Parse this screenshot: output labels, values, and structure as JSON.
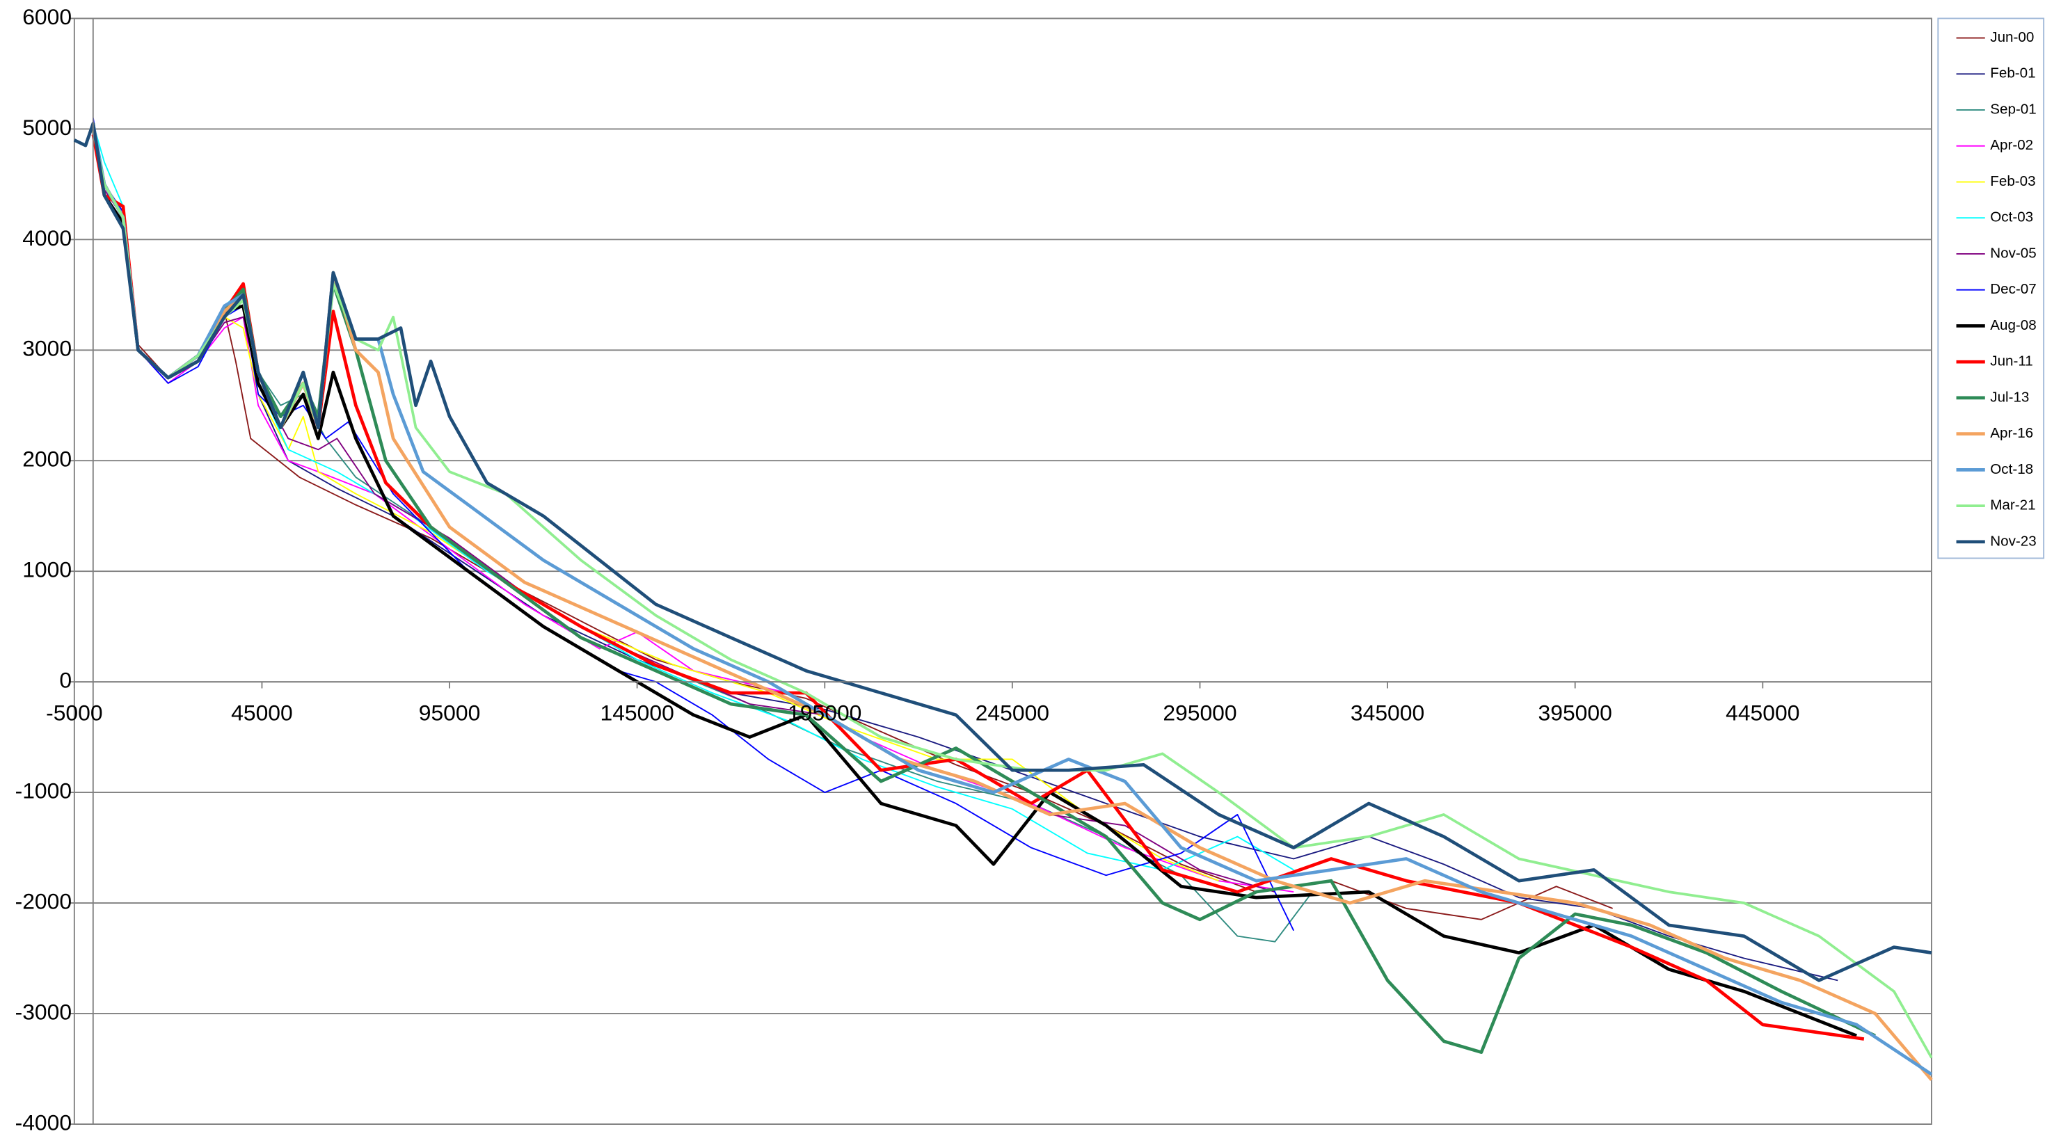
{
  "chart_data": {
    "type": "line",
    "xlim": [
      -5000,
      490000
    ],
    "xticks": [
      -5000,
      45000,
      95000,
      145000,
      195000,
      245000,
      295000,
      345000,
      395000,
      445000
    ],
    "ylim": [
      -4000,
      6000
    ],
    "yticks": [
      -4000,
      -3000,
      -2000,
      -1000,
      0,
      1000,
      2000,
      3000,
      4000,
      5000,
      6000
    ],
    "grid": true,
    "legend": "right",
    "series": [
      {
        "name": "Jun-00",
        "color": "#8b1a1a",
        "width": 1,
        "x": [
          0,
          3000,
          8000,
          12000,
          20000,
          28000,
          35000,
          38000,
          42000,
          55000,
          70000,
          90000,
          110000,
          130000,
          150000,
          170000,
          190000,
          210000,
          230000,
          250000,
          270000,
          290000,
          310000,
          330000,
          350000,
          370000,
          390000,
          405000
        ],
        "values": [
          4900,
          4500,
          4200,
          3050,
          2750,
          2950,
          3350,
          2900,
          2200,
          1850,
          1600,
          1300,
          900,
          550,
          200,
          0,
          -150,
          -450,
          -750,
          -1000,
          -1300,
          -1650,
          -1900,
          -1800,
          -2050,
          -2150,
          -1850,
          -2050
        ]
      },
      {
        "name": "Feb-01",
        "color": "#1a1a80",
        "width": 1,
        "x": [
          0,
          3000,
          8000,
          12000,
          20000,
          28000,
          35000,
          40000,
          44000,
          52000,
          65000,
          80000,
          100000,
          120000,
          145000,
          170000,
          195000,
          220000,
          245000,
          270000,
          295000,
          320000,
          340000,
          360000,
          380000,
          400000,
          420000,
          440000,
          465000
        ],
        "values": [
          5000,
          4400,
          4150,
          3000,
          2750,
          2900,
          3300,
          3450,
          2600,
          2000,
          1750,
          1500,
          1050,
          600,
          200,
          -100,
          -250,
          -500,
          -800,
          -1100,
          -1400,
          -1600,
          -1400,
          -1650,
          -1950,
          -2050,
          -2300,
          -2500,
          -2700
        ]
      },
      {
        "name": "Sep-01",
        "color": "#2e8b80",
        "width": 1,
        "x": [
          0,
          3000,
          8000,
          12000,
          20000,
          28000,
          35000,
          40000,
          44000,
          50000,
          56000,
          62000,
          70000,
          90000,
          110000,
          130000,
          150000,
          175000,
          200000,
          225000,
          250000,
          270000,
          290000,
          305000,
          315000,
          325000
        ],
        "values": [
          4900,
          4500,
          4250,
          3000,
          2750,
          2950,
          3350,
          3500,
          2800,
          2500,
          2600,
          2200,
          1850,
          1400,
          900,
          500,
          150,
          -200,
          -600,
          -900,
          -1100,
          -1400,
          -1750,
          -2300,
          -2350,
          -1900
        ]
      },
      {
        "name": "Apr-02",
        "color": "#ff00ff",
        "width": 1,
        "x": [
          0,
          3000,
          8000,
          12000,
          20000,
          28000,
          35000,
          40000,
          44000,
          52000,
          60000,
          75000,
          95000,
          115000,
          135000,
          145000,
          160000,
          185000,
          205000,
          225000,
          250000,
          275000,
          300000,
          320000
        ],
        "values": [
          4950,
          4450,
          4200,
          3000,
          2700,
          2900,
          3200,
          3300,
          2500,
          2000,
          1900,
          1700,
          1200,
          700,
          300,
          450,
          100,
          -100,
          -500,
          -800,
          -1100,
          -1500,
          -1800,
          -1900
        ]
      },
      {
        "name": "Feb-03",
        "color": "#ffff00",
        "width": 1,
        "x": [
          0,
          3000,
          8000,
          12000,
          20000,
          28000,
          35000,
          40000,
          44000,
          52000,
          56000,
          60000,
          70000,
          90000,
          110000,
          130000,
          155000,
          180000,
          200000,
          225000,
          245000,
          265000,
          285000,
          300000
        ],
        "values": [
          4900,
          4500,
          4200,
          3000,
          2750,
          2950,
          3300,
          3200,
          2600,
          2100,
          2400,
          1900,
          1700,
          1350,
          900,
          500,
          150,
          -100,
          -400,
          -700,
          -700,
          -1200,
          -1600,
          -1800
        ]
      },
      {
        "name": "Oct-03",
        "color": "#00ffff",
        "width": 1,
        "x": [
          0,
          3000,
          8000,
          12000,
          20000,
          28000,
          35000,
          40000,
          44000,
          52000,
          65000,
          85000,
          105000,
          125000,
          145000,
          165000,
          185000,
          205000,
          225000,
          245000,
          265000,
          285000,
          305000,
          320000
        ],
        "values": [
          5050,
          4700,
          4300,
          3000,
          2750,
          2950,
          3400,
          3550,
          2700,
          2100,
          1900,
          1500,
          1000,
          600,
          200,
          -100,
          -350,
          -700,
          -950,
          -1150,
          -1550,
          -1700,
          -1400,
          -1700
        ]
      },
      {
        "name": "Nov-05",
        "color": "#800080",
        "width": 1,
        "x": [
          0,
          3000,
          8000,
          12000,
          20000,
          28000,
          35000,
          40000,
          44000,
          52000,
          60000,
          65000,
          75000,
          95000,
          115000,
          135000,
          155000,
          175000,
          195000,
          215000,
          235000,
          255000,
          275000,
          295000,
          315000
        ],
        "values": [
          4950,
          4450,
          4200,
          3000,
          2750,
          2900,
          3250,
          3300,
          2700,
          2200,
          2100,
          2200,
          1700,
          1300,
          800,
          400,
          100,
          -200,
          -300,
          -700,
          -900,
          -1200,
          -1300,
          -1700,
          -1900
        ]
      },
      {
        "name": "Dec-07",
        "color": "#0000ff",
        "width": 1,
        "x": [
          0,
          3000,
          8000,
          12000,
          20000,
          28000,
          35000,
          40000,
          44000,
          50000,
          56000,
          62000,
          68000,
          80000,
          100000,
          120000,
          140000,
          150000,
          165000,
          180000,
          195000,
          210000,
          230000,
          250000,
          270000,
          290000,
          305000,
          320000
        ],
        "values": [
          5100,
          4500,
          4250,
          3000,
          2700,
          2850,
          3300,
          3400,
          2600,
          2400,
          2500,
          2200,
          2350,
          1700,
          1000,
          500,
          100,
          0,
          -300,
          -700,
          -1000,
          -800,
          -1100,
          -1500,
          -1750,
          -1550,
          -1200,
          -2250
        ]
      },
      {
        "name": "Aug-08",
        "color": "#000000",
        "width": 2.5,
        "x": [
          0,
          3000,
          8000,
          12000,
          20000,
          28000,
          35000,
          40000,
          44000,
          50000,
          56000,
          60000,
          64000,
          70000,
          80000,
          100000,
          120000,
          140000,
          160000,
          175000,
          190000,
          210000,
          230000,
          240000,
          255000,
          270000,
          290000,
          310000,
          340000,
          360000,
          380000,
          400000,
          420000,
          440000,
          470000
        ],
        "values": [
          5000,
          4400,
          4150,
          3000,
          2750,
          2900,
          3350,
          3400,
          2700,
          2300,
          2600,
          2200,
          2800,
          2200,
          1500,
          1000,
          500,
          100,
          -300,
          -500,
          -300,
          -1100,
          -1300,
          -1650,
          -1000,
          -1300,
          -1850,
          -1950,
          -1900,
          -2300,
          -2450,
          -2200,
          -2600,
          -2800,
          -3200
        ]
      },
      {
        "name": "Jun-11",
        "color": "#ff0000",
        "width": 2.5,
        "x": [
          0,
          3000,
          8000,
          12000,
          20000,
          28000,
          35000,
          40000,
          44000,
          50000,
          56000,
          60000,
          64000,
          70000,
          78000,
          90000,
          110000,
          130000,
          150000,
          170000,
          190000,
          210000,
          230000,
          250000,
          265000,
          285000,
          305000,
          330000,
          350000,
          380000,
          410000,
          430000,
          445000,
          472000
        ],
        "values": [
          4950,
          4400,
          4300,
          3000,
          2750,
          2950,
          3350,
          3600,
          2800,
          2300,
          2700,
          2300,
          3350,
          2500,
          1800,
          1400,
          900,
          500,
          150,
          -100,
          -100,
          -800,
          -700,
          -1100,
          -800,
          -1700,
          -1900,
          -1600,
          -1800,
          -2000,
          -2400,
          -2700,
          -3100,
          -3230
        ]
      },
      {
        "name": "Jul-13",
        "color": "#2e8b57",
        "width": 2.5,
        "x": [
          0,
          3000,
          8000,
          12000,
          20000,
          28000,
          35000,
          40000,
          44000,
          50000,
          56000,
          60000,
          64000,
          70000,
          78000,
          90000,
          110000,
          130000,
          150000,
          170000,
          190000,
          210000,
          230000,
          250000,
          270000,
          285000,
          295000,
          310000,
          330000,
          345000,
          360000,
          370000,
          380000,
          395000,
          410000,
          430000,
          450000,
          475000
        ],
        "values": [
          5000,
          4500,
          4200,
          3000,
          2750,
          2950,
          3350,
          3550,
          2800,
          2400,
          2700,
          2400,
          3600,
          3000,
          2000,
          1400,
          900,
          400,
          100,
          -200,
          -300,
          -900,
          -600,
          -1000,
          -1400,
          -2000,
          -2150,
          -1900,
          -1800,
          -2700,
          -3250,
          -3350,
          -2500,
          -2100,
          -2200,
          -2450,
          -2800,
          -3200
        ]
      },
      {
        "name": "Apr-16",
        "color": "#f4a460",
        "width": 2.5,
        "x": [
          0,
          3000,
          8000,
          12000,
          20000,
          28000,
          35000,
          40000,
          44000,
          50000,
          56000,
          60000,
          64000,
          70000,
          76000,
          80000,
          95000,
          115000,
          135000,
          155000,
          175000,
          195000,
          215000,
          235000,
          255000,
          275000,
          295000,
          315000,
          335000,
          355000,
          375000,
          395000,
          415000,
          435000,
          455000,
          475000,
          490000
        ],
        "values": [
          5000,
          4500,
          4200,
          3000,
          2750,
          2950,
          3350,
          3500,
          2800,
          2300,
          2700,
          2300,
          3700,
          3000,
          2800,
          2200,
          1400,
          900,
          600,
          300,
          0,
          -300,
          -700,
          -900,
          -1200,
          -1100,
          -1500,
          -1800,
          -2000,
          -1800,
          -1900,
          -2000,
          -2200,
          -2500,
          -2700,
          -3000,
          -3600
        ]
      },
      {
        "name": "Oct-18",
        "color": "#5b9bd5",
        "width": 2.5,
        "x": [
          0,
          3000,
          8000,
          12000,
          20000,
          28000,
          35000,
          40000,
          44000,
          50000,
          56000,
          60000,
          64000,
          70000,
          76000,
          80000,
          88000,
          100000,
          120000,
          140000,
          160000,
          180000,
          200000,
          220000,
          240000,
          260000,
          275000,
          290000,
          310000,
          330000,
          350000,
          370000,
          390000,
          410000,
          430000,
          450000,
          470000,
          490000
        ],
        "values": [
          5050,
          4500,
          4200,
          3000,
          2750,
          2950,
          3400,
          3500,
          2800,
          2300,
          2800,
          2300,
          3700,
          3100,
          3100,
          2600,
          1900,
          1600,
          1100,
          700,
          300,
          0,
          -400,
          -800,
          -1000,
          -700,
          -900,
          -1500,
          -1800,
          -1700,
          -1600,
          -1900,
          -2100,
          -2300,
          -2600,
          -2900,
          -3100,
          -3550
        ]
      },
      {
        "name": "Mar-21",
        "color": "#90ee90",
        "width": 2,
        "x": [
          0,
          3000,
          8000,
          12000,
          20000,
          28000,
          35000,
          40000,
          44000,
          50000,
          56000,
          60000,
          64000,
          70000,
          76000,
          80000,
          86000,
          95000,
          110000,
          130000,
          150000,
          170000,
          190000,
          210000,
          230000,
          250000,
          270000,
          285000,
          300000,
          320000,
          340000,
          360000,
          380000,
          400000,
          420000,
          440000,
          460000,
          480000,
          490000
        ],
        "values": [
          5000,
          4500,
          4200,
          3000,
          2750,
          2950,
          3300,
          3450,
          2800,
          2300,
          2700,
          2300,
          3600,
          3100,
          3000,
          3300,
          2300,
          1900,
          1700,
          1100,
          600,
          200,
          -100,
          -500,
          -700,
          -800,
          -800,
          -650,
          -1000,
          -1500,
          -1400,
          -1200,
          -1600,
          -1750,
          -1900,
          -2000,
          -2300,
          -2800,
          -3400
        ]
      },
      {
        "name": "Nov-23",
        "color": "#1f4e79",
        "width": 2.5,
        "x": [
          -5000,
          -2000,
          0,
          3000,
          8000,
          12000,
          20000,
          28000,
          35000,
          40000,
          44000,
          50000,
          56000,
          60000,
          64000,
          70000,
          76000,
          82000,
          86000,
          90000,
          95000,
          105000,
          120000,
          135000,
          150000,
          170000,
          190000,
          210000,
          230000,
          245000,
          260000,
          280000,
          300000,
          320000,
          340000,
          360000,
          380000,
          400000,
          420000,
          440000,
          460000,
          470000,
          480000,
          490000
        ],
        "values": [
          4900,
          4850,
          5050,
          4400,
          4100,
          3000,
          2750,
          2900,
          3300,
          3500,
          2800,
          2300,
          2800,
          2300,
          3700,
          3100,
          3100,
          3200,
          2500,
          2900,
          2400,
          1800,
          1500,
          1100,
          700,
          400,
          100,
          -100,
          -300,
          -800,
          -800,
          -750,
          -1200,
          -1500,
          -1100,
          -1400,
          -1800,
          -1700,
          -2200,
          -2300,
          -2700,
          -2550,
          -2400,
          -2450
        ]
      }
    ]
  }
}
